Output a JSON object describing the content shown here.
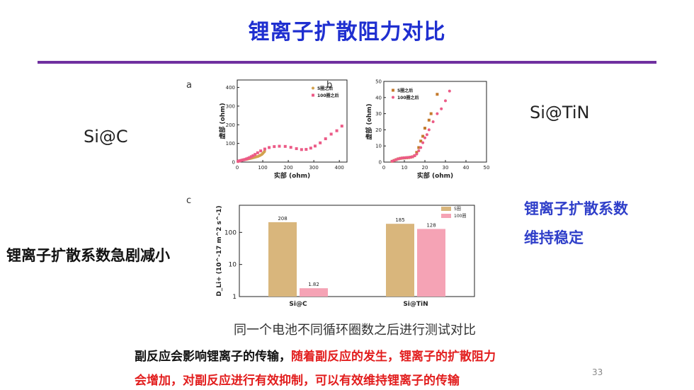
{
  "slide": {
    "title": "锂离子扩散阻力对比",
    "sample_left": "Si@C",
    "sample_right": "Si@TiN",
    "panel_a": "a",
    "panel_b": "b",
    "panel_c": "c",
    "left_claim": "锂离子扩散系数急剧减小",
    "right_claim_line1": "锂离子扩散系数",
    "right_claim_line2": "维持稳定",
    "caption": "同一个电池不同循环圈数之后进行测试对比",
    "note_black": "副反应会影响锂离子的传输，",
    "note_red_1": "随着副反应的发生，锂离子的扩散阻力",
    "note_red_2": "会增加，对副反应进行有效抑制，可以有效维持锂离子的传输",
    "page_number": "33",
    "colors": {
      "title": "#1f2fd0",
      "rule": "#7030a0",
      "accent_text": "#2f3fc9",
      "warning_text": "#e21d1d"
    }
  },
  "chart_data": [
    {
      "type": "scatter",
      "panel": "a",
      "xlabel": "实部 (ohm)",
      "ylabel": "虚部 (ohm)",
      "xlim": [
        0,
        430
      ],
      "ylim": [
        0,
        440
      ],
      "xticks": [
        0,
        100,
        200,
        300,
        400
      ],
      "yticks": [
        0,
        100,
        200,
        300,
        400
      ],
      "legend_position": "top-right",
      "series": [
        {
          "name": "5圈之后",
          "color": "#d2a24e",
          "marker": "circle",
          "points": [
            [
              3,
              3
            ],
            [
              6,
              5
            ],
            [
              10,
              7
            ],
            [
              15,
              9
            ],
            [
              20,
              11
            ],
            [
              26,
              13
            ],
            [
              32,
              14
            ],
            [
              38,
              15
            ],
            [
              44,
              17
            ],
            [
              50,
              19
            ],
            [
              56,
              21
            ],
            [
              62,
              23
            ],
            [
              67,
              25
            ],
            [
              72,
              27
            ],
            [
              77,
              29
            ],
            [
              82,
              31
            ],
            [
              87,
              34
            ],
            [
              91,
              37
            ],
            [
              96,
              41
            ],
            [
              100,
              46
            ],
            [
              104,
              52
            ],
            [
              107,
              57
            ]
          ]
        },
        {
          "name": "100圈之后",
          "color": "#ec5b87",
          "marker": "square",
          "points": [
            [
              3,
              4
            ],
            [
              7,
              6
            ],
            [
              12,
              8
            ],
            [
              18,
              10
            ],
            [
              24,
              12
            ],
            [
              30,
              14
            ],
            [
              36,
              17
            ],
            [
              42,
              20
            ],
            [
              48,
              24
            ],
            [
              55,
              29
            ],
            [
              62,
              34
            ],
            [
              70,
              41
            ],
            [
              80,
              50
            ],
            [
              92,
              60
            ],
            [
              108,
              70
            ],
            [
              125,
              78
            ],
            [
              145,
              83
            ],
            [
              165,
              85
            ],
            [
              188,
              84
            ],
            [
              210,
              79
            ],
            [
              232,
              72
            ],
            [
              252,
              67
            ],
            [
              270,
              68
            ],
            [
              288,
              75
            ],
            [
              305,
              86
            ],
            [
              325,
              103
            ],
            [
              346,
              125
            ],
            [
              368,
              150
            ],
            [
              390,
              168
            ],
            [
              410,
              193
            ]
          ]
        }
      ]
    },
    {
      "type": "scatter",
      "panel": "b",
      "xlabel": "实部 (ohm)",
      "ylabel": "虚部 (ohm)",
      "xlim": [
        0,
        50
      ],
      "ylim": [
        0,
        50
      ],
      "xticks": [
        0,
        10,
        20,
        30,
        40,
        50
      ],
      "yticks": [
        0,
        10,
        20,
        30,
        40,
        50
      ],
      "legend_position": "top-left",
      "series": [
        {
          "name": "5圈之后",
          "color": "#c47a2c",
          "marker": "square",
          "points": [
            [
              4,
              0.5
            ],
            [
              5,
              1
            ],
            [
              6,
              1.5
            ],
            [
              7,
              2
            ],
            [
              8,
              2.3
            ],
            [
              9,
              2.5
            ],
            [
              10,
              2.6
            ],
            [
              11,
              2.7
            ],
            [
              12,
              2.8
            ],
            [
              13,
              3
            ],
            [
              14,
              3.3
            ],
            [
              15,
              4
            ],
            [
              16,
              6
            ],
            [
              17,
              9
            ],
            [
              18,
              13
            ],
            [
              19,
              16
            ],
            [
              20,
              21
            ],
            [
              22,
              26
            ],
            [
              23,
              30
            ],
            [
              26,
              42
            ]
          ]
        },
        {
          "name": "100圈之后",
          "color": "#ec5b87",
          "marker": "circle",
          "points": [
            [
              4,
              0.5
            ],
            [
              5,
              1
            ],
            [
              6,
              1.5
            ],
            [
              7,
              2
            ],
            [
              8,
              2.3
            ],
            [
              9,
              2.5
            ],
            [
              10,
              2.7
            ],
            [
              11,
              2.8
            ],
            [
              12,
              2.9
            ],
            [
              13,
              3
            ],
            [
              14,
              3.3
            ],
            [
              15,
              4
            ],
            [
              16,
              5
            ],
            [
              17,
              7
            ],
            [
              18,
              9
            ],
            [
              19,
              12
            ],
            [
              20,
              15
            ],
            [
              21,
              17
            ],
            [
              22,
              20
            ],
            [
              24,
              25
            ],
            [
              26,
              30
            ],
            [
              28,
              33
            ],
            [
              30,
              38
            ],
            [
              32,
              44
            ]
          ]
        }
      ]
    },
    {
      "type": "bar",
      "panel": "c",
      "ylabel": "D_Li+ (10^-17 m^2 s^-1)",
      "yscale": "log",
      "ylim": [
        1,
        700
      ],
      "yticks": [
        1,
        10,
        100
      ],
      "categories": [
        "Si@C",
        "Si@TiN"
      ],
      "legend_position": "top-right",
      "series": [
        {
          "name": "5圈",
          "color": "#d9b67c",
          "values": [
            208,
            185
          ],
          "labels": [
            "208",
            "185"
          ]
        },
        {
          "name": "100圈",
          "color": "#f5a3b5",
          "values": [
            1.82,
            128
          ],
          "labels": [
            "1.82",
            "128"
          ]
        }
      ]
    }
  ]
}
